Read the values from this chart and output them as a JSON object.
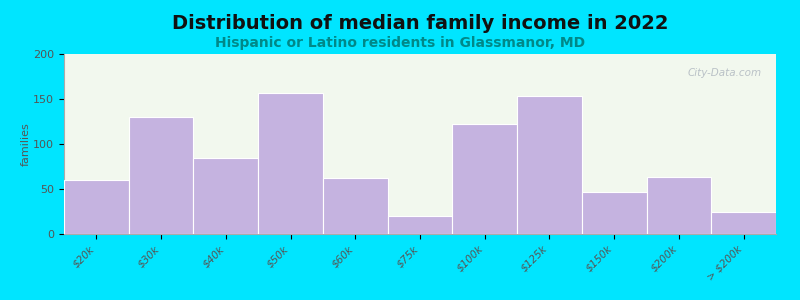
{
  "title": "Distribution of median family income in 2022",
  "subtitle": "Hispanic or Latino residents in Glassmanor, MD",
  "ylabel": "families",
  "categories": [
    "$20k",
    "$30k",
    "$40k",
    "$50k",
    "$60k",
    "$75k",
    "$100k",
    "$125k",
    "$150k",
    "$200k",
    "> $200k"
  ],
  "values": [
    60,
    130,
    85,
    157,
    62,
    20,
    122,
    153,
    47,
    63,
    25
  ],
  "bar_color": "#c5b3e0",
  "bar_edge_color": "#b8a8d8",
  "bg_outer": "#00e5ff",
  "title_fontsize": 14,
  "subtitle_fontsize": 10,
  "ylabel_fontsize": 8,
  "tick_fontsize": 7.5,
  "ylim": [
    0,
    200
  ],
  "yticks": [
    0,
    50,
    100,
    150,
    200
  ],
  "watermark": "City-Data.com",
  "title_color": "#111111",
  "subtitle_color": "#008888",
  "axis_color": "#888888"
}
